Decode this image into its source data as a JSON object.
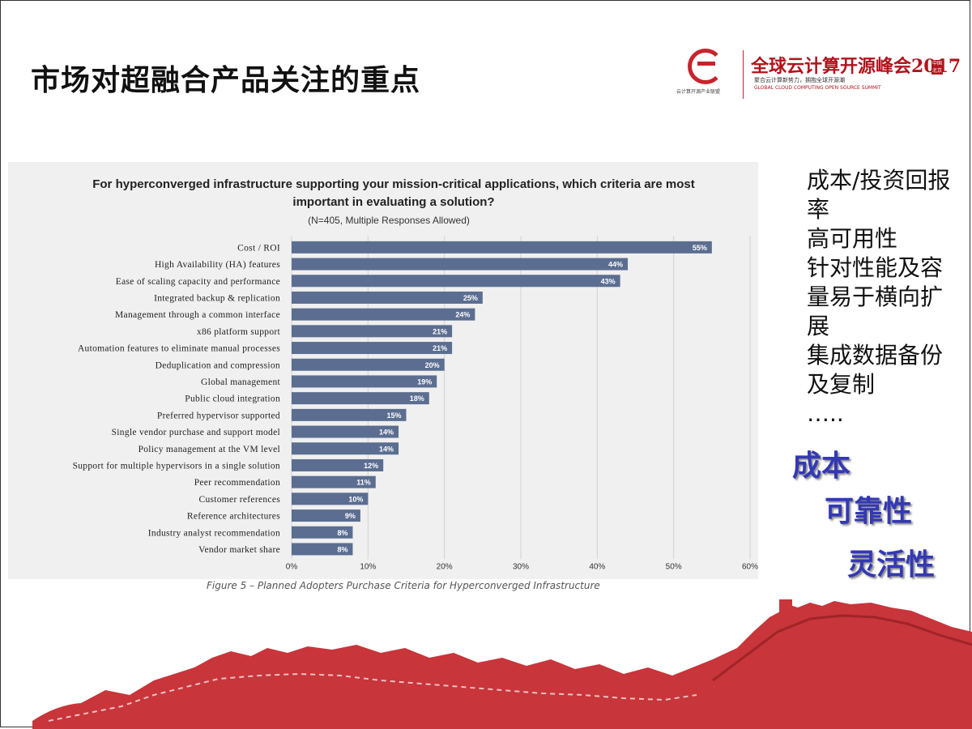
{
  "slide": {
    "title": "市场对超融合产品关注的重点"
  },
  "logo": {
    "org_label": "云计算开源产业联盟",
    "summit_name": "全球云计算开源峰会2017",
    "badge": "中国 北京",
    "tagline": "聚合云计算新势力，拥抱全球开源潮",
    "tagline_en": "GLOBAL CLOUD COMPUTING OPEN SOURCE SUMMIT"
  },
  "chart_data": {
    "type": "bar",
    "orientation": "horizontal",
    "title_line1": "For hyperconverged infrastructure supporting your mission-critical applications, which criteria are most",
    "title_line2": "important in evaluating a solution?",
    "subtitle": "(N=405, Multiple Responses Allowed)",
    "categories": [
      "Cost / ROI",
      "High Availability (HA) features",
      "Ease of scaling capacity and performance",
      "Integrated backup & replication",
      "Management through a common interface",
      "x86 platform support",
      "Automation features to eliminate manual processes",
      "Deduplication and compression",
      "Global management",
      "Public cloud integration",
      "Preferred hypervisor supported",
      "Single vendor purchase and support model",
      "Policy management at the VM level",
      "Support for multiple hypervisors in a single solution",
      "Peer recommendation",
      "Customer references",
      "Reference architectures",
      "Industry analyst recommendation",
      "Vendor market share"
    ],
    "values": [
      55,
      44,
      43,
      25,
      24,
      21,
      21,
      20,
      19,
      18,
      15,
      14,
      14,
      12,
      11,
      10,
      9,
      8,
      8
    ],
    "value_labels": [
      "55%",
      "44%",
      "43%",
      "25%",
      "24%",
      "21%",
      "21%",
      "20%",
      "19%",
      "18%",
      "15%",
      "14%",
      "14%",
      "12%",
      "11%",
      "10%",
      "9%",
      "8%",
      "8%"
    ],
    "xticks": [
      "0%",
      "10%",
      "20%",
      "30%",
      "40%",
      "50%",
      "60%"
    ],
    "xlim": [
      0,
      60
    ],
    "grid": true,
    "bar_color": "#5b6e91",
    "caption": "Figure 5 – Planned Adopters Purchase Criteria for Hyperconverged Infrastructure"
  },
  "sidebar": {
    "lines": [
      "成本/投资回报",
      "率",
      "高可用性",
      "针对性能及容",
      "量易于横向扩",
      "展",
      "集成数据备份",
      "及复制",
      "….."
    ],
    "emphasis": [
      "成本",
      "可靠性",
      "灵活性"
    ]
  },
  "colors": {
    "accent_red": "#c8232c",
    "emphasis_blue": "#3338b3"
  }
}
